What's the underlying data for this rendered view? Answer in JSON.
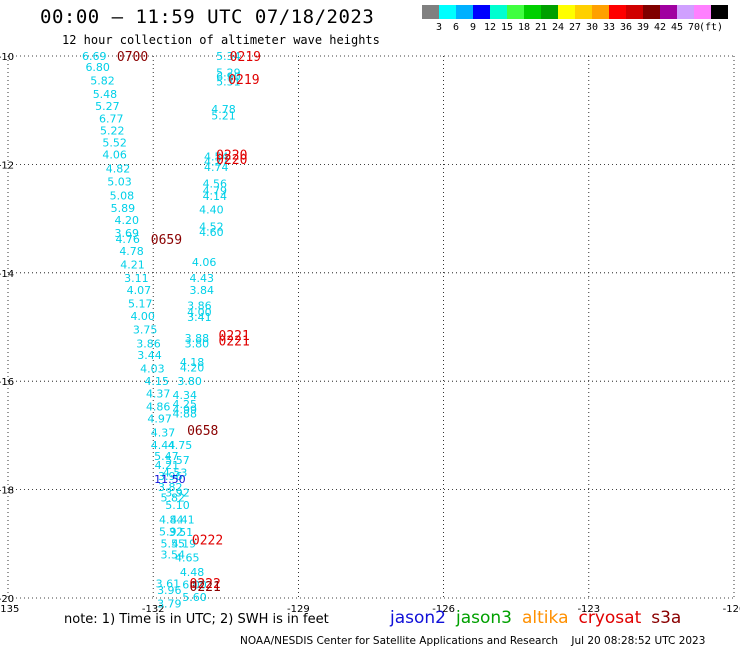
{
  "header": {
    "title": "00:00 — 11:59 UTC 07/18/2023",
    "subtitle": "12 hour collection of altimeter wave heights"
  },
  "colorbar": {
    "colors": [
      "#808080",
      "#00ffff",
      "#00b0ff",
      "#0000ff",
      "#00ffd0",
      "#40ff40",
      "#00d000",
      "#00a000",
      "#ffff00",
      "#ffd000",
      "#ffa000",
      "#ff0000",
      "#d00000",
      "#800000",
      "#a000a0",
      "#d0a0ff",
      "#ff80ff",
      "#000000"
    ],
    "labels": [
      "3",
      "6",
      "9",
      "12",
      "15",
      "18",
      "21",
      "24",
      "27",
      "30",
      "33",
      "36",
      "39",
      "42",
      "45",
      "70",
      "(ft)"
    ]
  },
  "map": {
    "lon_range": [
      -135,
      -120
    ],
    "lat_range": [
      -20,
      -10
    ],
    "lon_ticks": [
      "-135",
      "-132",
      "-129",
      "-126",
      "-123",
      "-120"
    ],
    "lat_ticks": [
      "-10",
      "-12",
      "-14",
      "-16",
      "-18",
      "-20"
    ],
    "grid": "dotted",
    "observations": [
      {
        "lon": -133.47,
        "lat": -10.0,
        "v": "6.69"
      },
      {
        "lon": -133.4,
        "lat": -10.2,
        "v": "6.80"
      },
      {
        "lon": -133.3,
        "lat": -10.45,
        "v": "5.82"
      },
      {
        "lon": -133.25,
        "lat": -10.7,
        "v": "5.48"
      },
      {
        "lon": -133.2,
        "lat": -10.92,
        "v": "5.27"
      },
      {
        "lon": -133.12,
        "lat": -11.15,
        "v": "6.77"
      },
      {
        "lon": -133.1,
        "lat": -11.37,
        "v": "5.22"
      },
      {
        "lon": -133.05,
        "lat": -11.6,
        "v": "5.52"
      },
      {
        "lon": -133.05,
        "lat": -11.82,
        "v": "4.06"
      },
      {
        "lon": -132.98,
        "lat": -12.08,
        "v": "4.82"
      },
      {
        "lon": -132.95,
        "lat": -12.32,
        "v": "5.03"
      },
      {
        "lon": -132.9,
        "lat": -12.57,
        "v": "5.08"
      },
      {
        "lon": -132.88,
        "lat": -12.8,
        "v": "5.89"
      },
      {
        "lon": -132.8,
        "lat": -13.03,
        "v": "4.20"
      },
      {
        "lon": -132.8,
        "lat": -13.27,
        "v": "3.69"
      },
      {
        "lon": -132.78,
        "lat": -13.38,
        "v": "4.76"
      },
      {
        "lon": -132.7,
        "lat": -13.6,
        "v": "4.78"
      },
      {
        "lon": -132.68,
        "lat": -13.85,
        "v": "4.21"
      },
      {
        "lon": -132.6,
        "lat": -14.1,
        "v": "3.11"
      },
      {
        "lon": -132.55,
        "lat": -14.32,
        "v": "4.07"
      },
      {
        "lon": -132.52,
        "lat": -14.57,
        "v": "5.17"
      },
      {
        "lon": -132.47,
        "lat": -14.8,
        "v": "4.00"
      },
      {
        "lon": -132.42,
        "lat": -15.05,
        "v": "3.75"
      },
      {
        "lon": -132.35,
        "lat": -15.3,
        "v": "3.86"
      },
      {
        "lon": -132.33,
        "lat": -15.52,
        "v": "3.44"
      },
      {
        "lon": -132.27,
        "lat": -15.77,
        "v": "4.03"
      },
      {
        "lon": -132.18,
        "lat": -16.0,
        "v": "4.15"
      },
      {
        "lon": -132.15,
        "lat": -16.23,
        "v": "4.37"
      },
      {
        "lon": -132.15,
        "lat": -16.47,
        "v": "4.86"
      },
      {
        "lon": -132.12,
        "lat": -16.69,
        "v": "4.97"
      },
      {
        "lon": -132.05,
        "lat": -16.95,
        "v": "4.37"
      },
      {
        "lon": -132.05,
        "lat": -17.18,
        "v": "4.44"
      },
      {
        "lon": -131.98,
        "lat": -17.38,
        "v": "5.47"
      },
      {
        "lon": -131.97,
        "lat": -17.55,
        "v": "4.21"
      },
      {
        "lon": -131.9,
        "lat": -17.75,
        "v": "3.96"
      },
      {
        "lon": -131.9,
        "lat": -17.95,
        "v": "3.82"
      },
      {
        "lon": -131.85,
        "lat": -18.15,
        "v": "5.82"
      },
      {
        "lon": -131.88,
        "lat": -18.55,
        "v": "4.84"
      },
      {
        "lon": -131.88,
        "lat": -18.77,
        "v": "5.92"
      },
      {
        "lon": -131.85,
        "lat": -18.99,
        "v": "5.55"
      },
      {
        "lon": -131.85,
        "lat": -19.2,
        "v": "3.54"
      },
      {
        "lon": -131.95,
        "lat": -19.73,
        "v": "3.61"
      },
      {
        "lon": -131.92,
        "lat": -19.85,
        "v": "3.96"
      },
      {
        "lon": -131.92,
        "lat": -20.1,
        "v": "3.79"
      },
      {
        "lon": -130.7,
        "lat": -10.0,
        "v": "5.34"
      },
      {
        "lon": -130.7,
        "lat": -10.3,
        "v": "5.29"
      },
      {
        "lon": -130.7,
        "lat": -10.38,
        "v": "6.90"
      },
      {
        "lon": -130.7,
        "lat": -10.47,
        "v": "5.31"
      },
      {
        "lon": -130.8,
        "lat": -10.98,
        "v": "4.78"
      },
      {
        "lon": -130.8,
        "lat": -11.1,
        "v": "5.21"
      },
      {
        "lon": -130.95,
        "lat": -11.85,
        "v": "4.54"
      },
      {
        "lon": -130.95,
        "lat": -11.95,
        "v": "4.27"
      },
      {
        "lon": -130.95,
        "lat": -12.05,
        "v": "4.74"
      },
      {
        "lon": -130.98,
        "lat": -12.35,
        "v": "4.56"
      },
      {
        "lon": -130.98,
        "lat": -12.48,
        "v": "4.79"
      },
      {
        "lon": -130.98,
        "lat": -12.58,
        "v": "4.14"
      },
      {
        "lon": -131.05,
        "lat": -12.83,
        "v": "4.40"
      },
      {
        "lon": -131.05,
        "lat": -13.15,
        "v": "4.52"
      },
      {
        "lon": -131.05,
        "lat": -13.25,
        "v": "4.60"
      },
      {
        "lon": -131.2,
        "lat": -13.8,
        "v": "4.06"
      },
      {
        "lon": -131.25,
        "lat": -14.1,
        "v": "4.43"
      },
      {
        "lon": -131.25,
        "lat": -14.32,
        "v": "3.84"
      },
      {
        "lon": -131.3,
        "lat": -14.6,
        "v": "3.86"
      },
      {
        "lon": -131.3,
        "lat": -14.72,
        "v": "4.00"
      },
      {
        "lon": -131.3,
        "lat": -14.82,
        "v": "3.41"
      },
      {
        "lon": -131.35,
        "lat": -15.2,
        "v": "3.88"
      },
      {
        "lon": -131.35,
        "lat": -15.3,
        "v": "3.80"
      },
      {
        "lon": -131.45,
        "lat": -15.65,
        "v": "4.18"
      },
      {
        "lon": -131.45,
        "lat": -15.75,
        "v": "4.20"
      },
      {
        "lon": -131.5,
        "lat": -16.0,
        "v": "3.80"
      },
      {
        "lon": -131.6,
        "lat": -16.25,
        "v": "4.34"
      },
      {
        "lon": -131.6,
        "lat": -16.42,
        "v": "4.25"
      },
      {
        "lon": -131.6,
        "lat": -16.52,
        "v": "4.99"
      },
      {
        "lon": -131.6,
        "lat": -16.6,
        "v": "4.88"
      },
      {
        "lon": -131.7,
        "lat": -17.18,
        "v": "4.75"
      },
      {
        "lon": -131.75,
        "lat": -17.45,
        "v": "5.57"
      },
      {
        "lon": -131.8,
        "lat": -17.68,
        "v": "4.53"
      },
      {
        "lon": -131.98,
        "lat": -17.8,
        "v": "11.50",
        "sat": "jason2"
      },
      {
        "lon": -131.75,
        "lat": -18.05,
        "v": "3.92"
      },
      {
        "lon": -131.75,
        "lat": -18.28,
        "v": "5.10"
      },
      {
        "lon": -131.65,
        "lat": -18.55,
        "v": "4.41"
      },
      {
        "lon": -131.68,
        "lat": -18.78,
        "v": "3.51"
      },
      {
        "lon": -131.62,
        "lat": -18.99,
        "v": "4.19"
      },
      {
        "lon": -131.55,
        "lat": -19.25,
        "v": "4.65"
      },
      {
        "lon": -131.45,
        "lat": -19.52,
        "v": "4.48"
      },
      {
        "lon": -131.4,
        "lat": -19.75,
        "v": "6.00"
      },
      {
        "lon": -131.4,
        "lat": -19.98,
        "v": "5.60"
      }
    ],
    "time_labels": [
      {
        "lon": -132.75,
        "lat": -10.0,
        "t": "0700",
        "sat": "s3a"
      },
      {
        "lon": -130.42,
        "lat": -10.0,
        "t": "0219",
        "sat": "cryosat"
      },
      {
        "lon": -130.45,
        "lat": -10.42,
        "t": "0219",
        "sat": "cryosat"
      },
      {
        "lon": -130.7,
        "lat": -11.82,
        "t": "0220",
        "sat": "cryosat"
      },
      {
        "lon": -130.7,
        "lat": -11.9,
        "t": "0220",
        "sat": "cryosat"
      },
      {
        "lon": -132.05,
        "lat": -13.38,
        "t": "0659",
        "sat": "s3a"
      },
      {
        "lon": -130.65,
        "lat": -15.15,
        "t": "0221",
        "sat": "cryosat"
      },
      {
        "lon": -130.65,
        "lat": -15.25,
        "t": "0221",
        "sat": "cryosat"
      },
      {
        "lon": -131.3,
        "lat": -16.9,
        "t": "0658",
        "sat": "s3a"
      },
      {
        "lon": -131.2,
        "lat": -18.92,
        "t": "0222",
        "sat": "cryosat"
      },
      {
        "lon": -131.25,
        "lat": -19.72,
        "t": "0222",
        "sat": "cryosat"
      },
      {
        "lon": -131.25,
        "lat": -19.78,
        "t": "0221",
        "sat": "s3a"
      }
    ]
  },
  "note": "note: 1) Time is in UTC; 2) SWH is in feet",
  "legend": [
    {
      "name": "jason2",
      "color": "#1010d8"
    },
    {
      "name": "jason3",
      "color": "#00a000"
    },
    {
      "name": "altika",
      "color": "#ff9000"
    },
    {
      "name": "cryosat",
      "color": "#e00000"
    },
    {
      "name": "s3a",
      "color": "#8a0000"
    }
  ],
  "credit": "NOAA/NESDIS Center for Satellite Applications and Research    Jul 20 08:28:52 UTC 2023"
}
